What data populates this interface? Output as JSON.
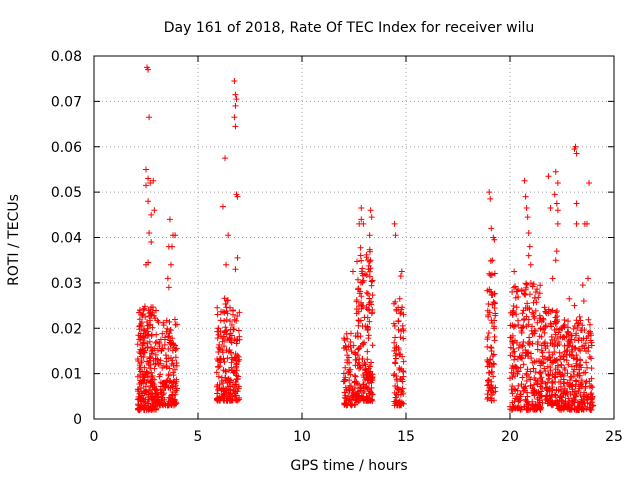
{
  "chart_data": {
    "type": "scatter",
    "title": "Day 161 of 2018, Rate Of TEC Index for receiver wilu",
    "xlabel": "GPS time / hours",
    "ylabel": "ROTI / TECUs",
    "xlim": [
      0,
      25
    ],
    "ylim": [
      0,
      0.08
    ],
    "xticks": [
      "0",
      "5",
      "10",
      "15",
      "20",
      "25"
    ],
    "yticks": [
      "0",
      "0.01",
      "0.02",
      "0.03",
      "0.04",
      "0.05",
      "0.06",
      "0.07",
      "0.08"
    ],
    "grid": true,
    "marker": "+",
    "color": "#ff0000",
    "series": [
      {
        "name": "ROTI",
        "clusters": [
          {
            "x": [
              2.1,
              3.0
            ],
            "y": [
              0.002,
              0.025
            ],
            "n": 260
          },
          {
            "x": [
              3.0,
              4.0
            ],
            "y": [
              0.003,
              0.022
            ],
            "n": 170
          },
          {
            "x": [
              5.9,
              6.6
            ],
            "y": [
              0.004,
              0.028
            ],
            "n": 140
          },
          {
            "x": [
              6.6,
              7.0
            ],
            "y": [
              0.004,
              0.025
            ],
            "n": 70
          },
          {
            "x": [
              12.0,
              12.6
            ],
            "y": [
              0.003,
              0.02
            ],
            "n": 90
          },
          {
            "x": [
              12.6,
              13.4
            ],
            "y": [
              0.004,
              0.038
            ],
            "n": 200
          },
          {
            "x": [
              14.4,
              14.9
            ],
            "y": [
              0.003,
              0.026
            ],
            "n": 90
          },
          {
            "x": [
              18.9,
              19.3
            ],
            "y": [
              0.004,
              0.035
            ],
            "n": 80
          },
          {
            "x": [
              20.0,
              21.5
            ],
            "y": [
              0.002,
              0.03
            ],
            "n": 280
          },
          {
            "x": [
              21.5,
              22.3
            ],
            "y": [
              0.003,
              0.025
            ],
            "n": 150
          },
          {
            "x": [
              22.3,
              24.0
            ],
            "y": [
              0.002,
              0.022
            ],
            "n": 300
          }
        ],
        "points": [
          [
            2.55,
            0.0775
          ],
          [
            2.6,
            0.077
          ],
          [
            2.65,
            0.0665
          ],
          [
            2.5,
            0.055
          ],
          [
            2.6,
            0.053
          ],
          [
            2.5,
            0.0515
          ],
          [
            2.7,
            0.052
          ],
          [
            2.85,
            0.0525
          ],
          [
            2.6,
            0.048
          ],
          [
            2.9,
            0.046
          ],
          [
            2.75,
            0.045
          ],
          [
            2.65,
            0.041
          ],
          [
            2.5,
            0.034
          ],
          [
            2.6,
            0.0345
          ],
          [
            2.75,
            0.039
          ],
          [
            3.65,
            0.044
          ],
          [
            3.8,
            0.0405
          ],
          [
            3.9,
            0.0405
          ],
          [
            3.6,
            0.038
          ],
          [
            3.75,
            0.038
          ],
          [
            3.7,
            0.034
          ],
          [
            3.55,
            0.031
          ],
          [
            3.6,
            0.029
          ],
          [
            6.75,
            0.0745
          ],
          [
            6.8,
            0.0715
          ],
          [
            6.85,
            0.0705
          ],
          [
            6.8,
            0.069
          ],
          [
            6.75,
            0.0665
          ],
          [
            6.8,
            0.0645
          ],
          [
            6.3,
            0.0575
          ],
          [
            6.2,
            0.0468
          ],
          [
            6.85,
            0.0495
          ],
          [
            6.9,
            0.049
          ],
          [
            6.45,
            0.0405
          ],
          [
            6.35,
            0.034
          ],
          [
            6.9,
            0.0355
          ],
          [
            6.8,
            0.033
          ],
          [
            12.45,
            0.0325
          ],
          [
            12.85,
            0.0465
          ],
          [
            12.85,
            0.044
          ],
          [
            12.95,
            0.043
          ],
          [
            12.75,
            0.043
          ],
          [
            13.3,
            0.046
          ],
          [
            13.35,
            0.0445
          ],
          [
            13.25,
            0.0405
          ],
          [
            13.3,
            0.035
          ],
          [
            13.2,
            0.033
          ],
          [
            14.5,
            0.0405
          ],
          [
            14.45,
            0.043
          ],
          [
            14.8,
            0.0325
          ],
          [
            14.75,
            0.0315
          ],
          [
            14.7,
            0.0265
          ],
          [
            19.0,
            0.05
          ],
          [
            19.05,
            0.0485
          ],
          [
            19.1,
            0.042
          ],
          [
            19.2,
            0.04
          ],
          [
            19.25,
            0.0395
          ],
          [
            19.15,
            0.035
          ],
          [
            19.0,
            0.032
          ],
          [
            19.1,
            0.028
          ],
          [
            20.7,
            0.0525
          ],
          [
            20.75,
            0.049
          ],
          [
            20.8,
            0.0465
          ],
          [
            20.85,
            0.0445
          ],
          [
            20.9,
            0.041
          ],
          [
            20.95,
            0.038
          ],
          [
            20.9,
            0.036
          ],
          [
            21.0,
            0.034
          ],
          [
            20.2,
            0.0325
          ],
          [
            21.85,
            0.0535
          ],
          [
            21.95,
            0.0465
          ],
          [
            22.2,
            0.0545
          ],
          [
            22.3,
            0.052
          ],
          [
            22.15,
            0.0495
          ],
          [
            22.25,
            0.0475
          ],
          [
            22.3,
            0.046
          ],
          [
            22.3,
            0.043
          ],
          [
            22.25,
            0.037
          ],
          [
            22.2,
            0.035
          ],
          [
            22.05,
            0.031
          ],
          [
            23.1,
            0.0595
          ],
          [
            23.15,
            0.06
          ],
          [
            23.2,
            0.0585
          ],
          [
            23.2,
            0.0475
          ],
          [
            23.2,
            0.043
          ],
          [
            23.6,
            0.043
          ],
          [
            23.7,
            0.043
          ],
          [
            23.8,
            0.052
          ],
          [
            23.75,
            0.031
          ],
          [
            23.5,
            0.0295
          ],
          [
            22.85,
            0.0265
          ],
          [
            23.55,
            0.026
          ],
          [
            23.1,
            0.025
          ],
          [
            23.35,
            0.0225
          ]
        ]
      }
    ]
  }
}
